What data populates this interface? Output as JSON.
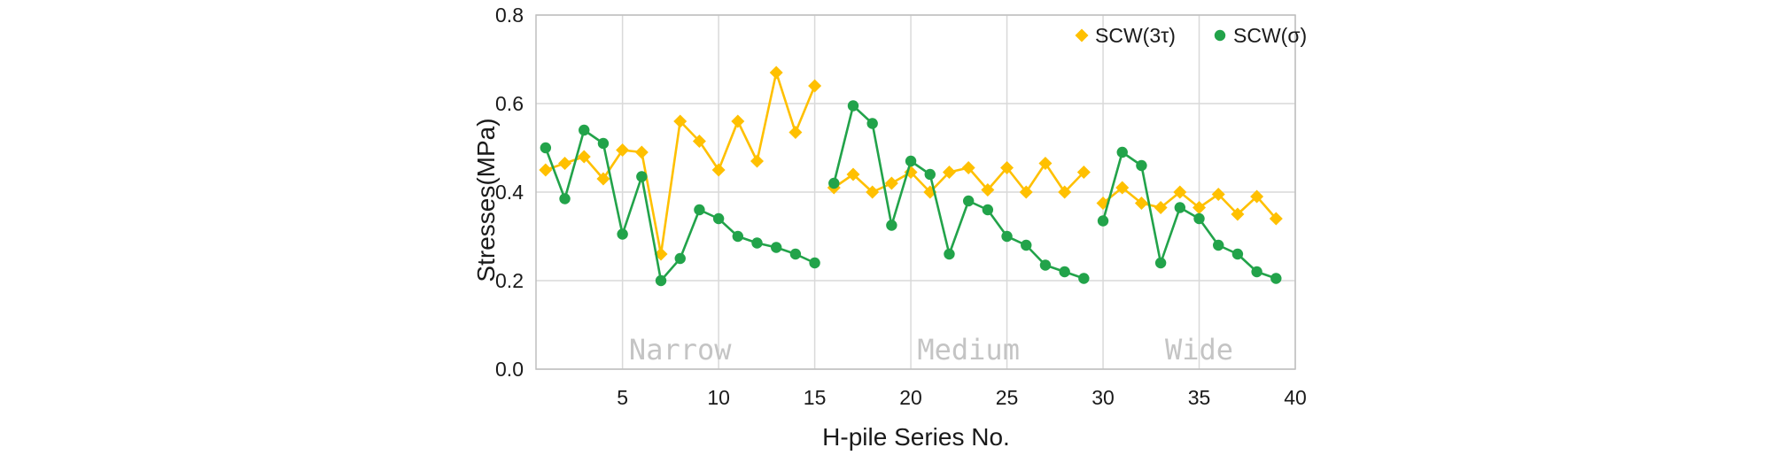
{
  "chart_data": {
    "type": "line",
    "xlabel": "H-pile Series No.",
    "ylabel": "Stresses(MPa)",
    "xlim": [
      0.5,
      40
    ],
    "ylim": [
      0,
      0.8
    ],
    "xticks": [
      5,
      10,
      15,
      20,
      25,
      30,
      35,
      40
    ],
    "yticks": [
      0.0,
      0.2,
      0.4,
      0.6,
      0.8
    ],
    "ytick_labels": [
      "0.0",
      "0.2",
      "0.4",
      "0.6",
      "0.8"
    ],
    "grid": "major gridlines on both axes",
    "legend_position": "top-right",
    "regions": [
      {
        "label": "Narrow",
        "x_center": 8
      },
      {
        "label": "Medium",
        "x_center": 23
      },
      {
        "label": "Wide",
        "x_center": 35
      }
    ],
    "series": [
      {
        "name": "SCW(3τ)",
        "marker": "diamond",
        "color": "#FFC000",
        "segments": [
          {
            "x": [
              1,
              2,
              3,
              4,
              5,
              6,
              7,
              8,
              9,
              10,
              11,
              12,
              13,
              14,
              15
            ],
            "y": [
              0.45,
              0.465,
              0.48,
              0.43,
              0.495,
              0.49,
              0.26,
              0.56,
              0.515,
              0.45,
              0.56,
              0.47,
              0.67,
              0.535,
              0.64
            ]
          },
          {
            "x": [
              16,
              17,
              18,
              19,
              20,
              21,
              22,
              23,
              24,
              25,
              26,
              27,
              28,
              29
            ],
            "y": [
              0.41,
              0.44,
              0.4,
              0.42,
              0.445,
              0.4,
              0.445,
              0.455,
              0.405,
              0.455,
              0.4,
              0.465,
              0.4,
              0.445
            ]
          },
          {
            "x": [
              30,
              31,
              32,
              33,
              34,
              35,
              36,
              37,
              38,
              39
            ],
            "y": [
              0.375,
              0.41,
              0.375,
              0.365,
              0.4,
              0.365,
              0.395,
              0.35,
              0.39,
              0.34
            ]
          }
        ]
      },
      {
        "name": "SCW(σ)",
        "marker": "circle",
        "color": "#22A34A",
        "segments": [
          {
            "x": [
              1,
              2,
              3,
              4,
              5,
              6,
              7,
              8,
              9,
              10,
              11,
              12,
              13,
              14,
              15
            ],
            "y": [
              0.5,
              0.385,
              0.54,
              0.51,
              0.305,
              0.435,
              0.2,
              0.25,
              0.36,
              0.34,
              0.3,
              0.285,
              0.275,
              0.26,
              0.24
            ]
          },
          {
            "x": [
              16,
              17,
              18,
              19,
              20,
              21,
              22,
              23,
              24,
              25,
              26,
              27,
              28,
              29
            ],
            "y": [
              0.42,
              0.595,
              0.555,
              0.325,
              0.47,
              0.44,
              0.26,
              0.38,
              0.36,
              0.3,
              0.28,
              0.235,
              0.22,
              0.205
            ]
          },
          {
            "x": [
              30,
              31,
              32,
              33,
              34,
              35,
              36,
              37,
              38,
              39
            ],
            "y": [
              0.335,
              0.49,
              0.46,
              0.24,
              0.365,
              0.34,
              0.28,
              0.26,
              0.22,
              0.205
            ]
          }
        ]
      }
    ]
  }
}
